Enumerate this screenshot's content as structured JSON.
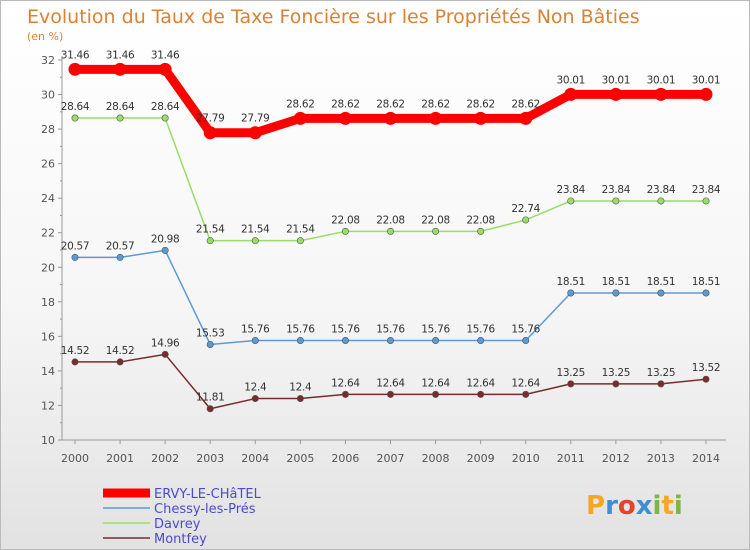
{
  "chart_data": {
    "type": "line",
    "title": "Evolution du Taux de Taxe Foncière sur les Propriétés Non Bâties",
    "subtitle": "(en %)",
    "xlabel": "",
    "ylabel": "",
    "ylim": [
      10,
      32
    ],
    "yticks": [
      "10",
      "12",
      "14",
      "16",
      "18",
      "20",
      "22",
      "24",
      "26",
      "28",
      "30",
      "32"
    ],
    "categories": [
      "2000",
      "2001",
      "2002",
      "2003",
      "2004",
      "2005",
      "2006",
      "2007",
      "2008",
      "2009",
      "2010",
      "2011",
      "2012",
      "2013",
      "2014"
    ],
    "grid": false,
    "legend_position": "bottom-left",
    "series": [
      {
        "name": "ERVY-LE-CHâTEL",
        "color": "#ff0000",
        "legend_color": "#4b4bd0",
        "values": [
          31.46,
          31.46,
          31.46,
          27.79,
          27.79,
          28.62,
          28.62,
          28.62,
          28.62,
          28.62,
          28.62,
          30.01,
          30.01,
          30.01,
          30.01
        ],
        "labels": [
          "31.46",
          "31.46",
          "31.46",
          "27.79",
          "27.79",
          "28.62",
          "28.62",
          "28.62",
          "28.62",
          "28.62",
          "28.62",
          "30.01",
          "30.01",
          "30.01",
          "30.01"
        ]
      },
      {
        "name": "Chessy-les-Prés",
        "color": "#5b9bd5",
        "legend_color": "#4b4bd0",
        "values": [
          20.57,
          20.57,
          20.98,
          15.53,
          15.76,
          15.76,
          15.76,
          15.76,
          15.76,
          15.76,
          15.76,
          18.51,
          18.51,
          18.51,
          18.51
        ],
        "labels": [
          "20.57",
          "20.57",
          "20.98",
          "15.53",
          "15.76",
          "15.76",
          "15.76",
          "15.76",
          "15.76",
          "15.76",
          "15.76",
          "18.51",
          "18.51",
          "18.51",
          "18.51"
        ]
      },
      {
        "name": "Davrey",
        "color": "#99dd66",
        "legend_color": "#4b4bd0",
        "values": [
          28.64,
          28.64,
          28.64,
          21.54,
          21.54,
          21.54,
          22.08,
          22.08,
          22.08,
          22.08,
          22.74,
          23.84,
          23.84,
          23.84,
          23.84
        ],
        "labels": [
          "28.64",
          "28.64",
          "28.64",
          "21.54",
          "21.54",
          "21.54",
          "22.08",
          "22.08",
          "22.08",
          "22.08",
          "22.74",
          "23.84",
          "23.84",
          "23.84",
          "23.84"
        ]
      },
      {
        "name": "Montfey",
        "color": "#7b2b2b",
        "legend_color": "#4b4bd0",
        "values": [
          14.52,
          14.52,
          14.96,
          11.81,
          12.4,
          12.4,
          12.64,
          12.64,
          12.64,
          12.64,
          12.64,
          13.25,
          13.25,
          13.25,
          13.52
        ],
        "labels": [
          "14.52",
          "14.52",
          "14.96",
          "11.81",
          "12.4",
          "12.4",
          "12.64",
          "12.64",
          "12.64",
          "12.64",
          "12.64",
          "13.25",
          "13.25",
          "13.25",
          "13.52"
        ]
      }
    ]
  },
  "logo": {
    "text": "Proxiti",
    "letters": [
      {
        "ch": "P",
        "color": "#f7a823"
      },
      {
        "ch": "r",
        "color": "#3e8fd6"
      },
      {
        "ch": "o",
        "color": "#e8412c"
      },
      {
        "ch": "x",
        "color": "#3e8fd6"
      },
      {
        "ch": "i",
        "color": "#7ab648"
      },
      {
        "ch": "t",
        "color": "#f7a823"
      },
      {
        "ch": "i",
        "color": "#7ab648"
      }
    ]
  },
  "colors": {
    "title": "#d98235",
    "axis": "#999999",
    "tick_text": "#555555",
    "label_text": "#333333",
    "background_top": "#ffffff",
    "background_bottom": "#e6e6e6"
  }
}
